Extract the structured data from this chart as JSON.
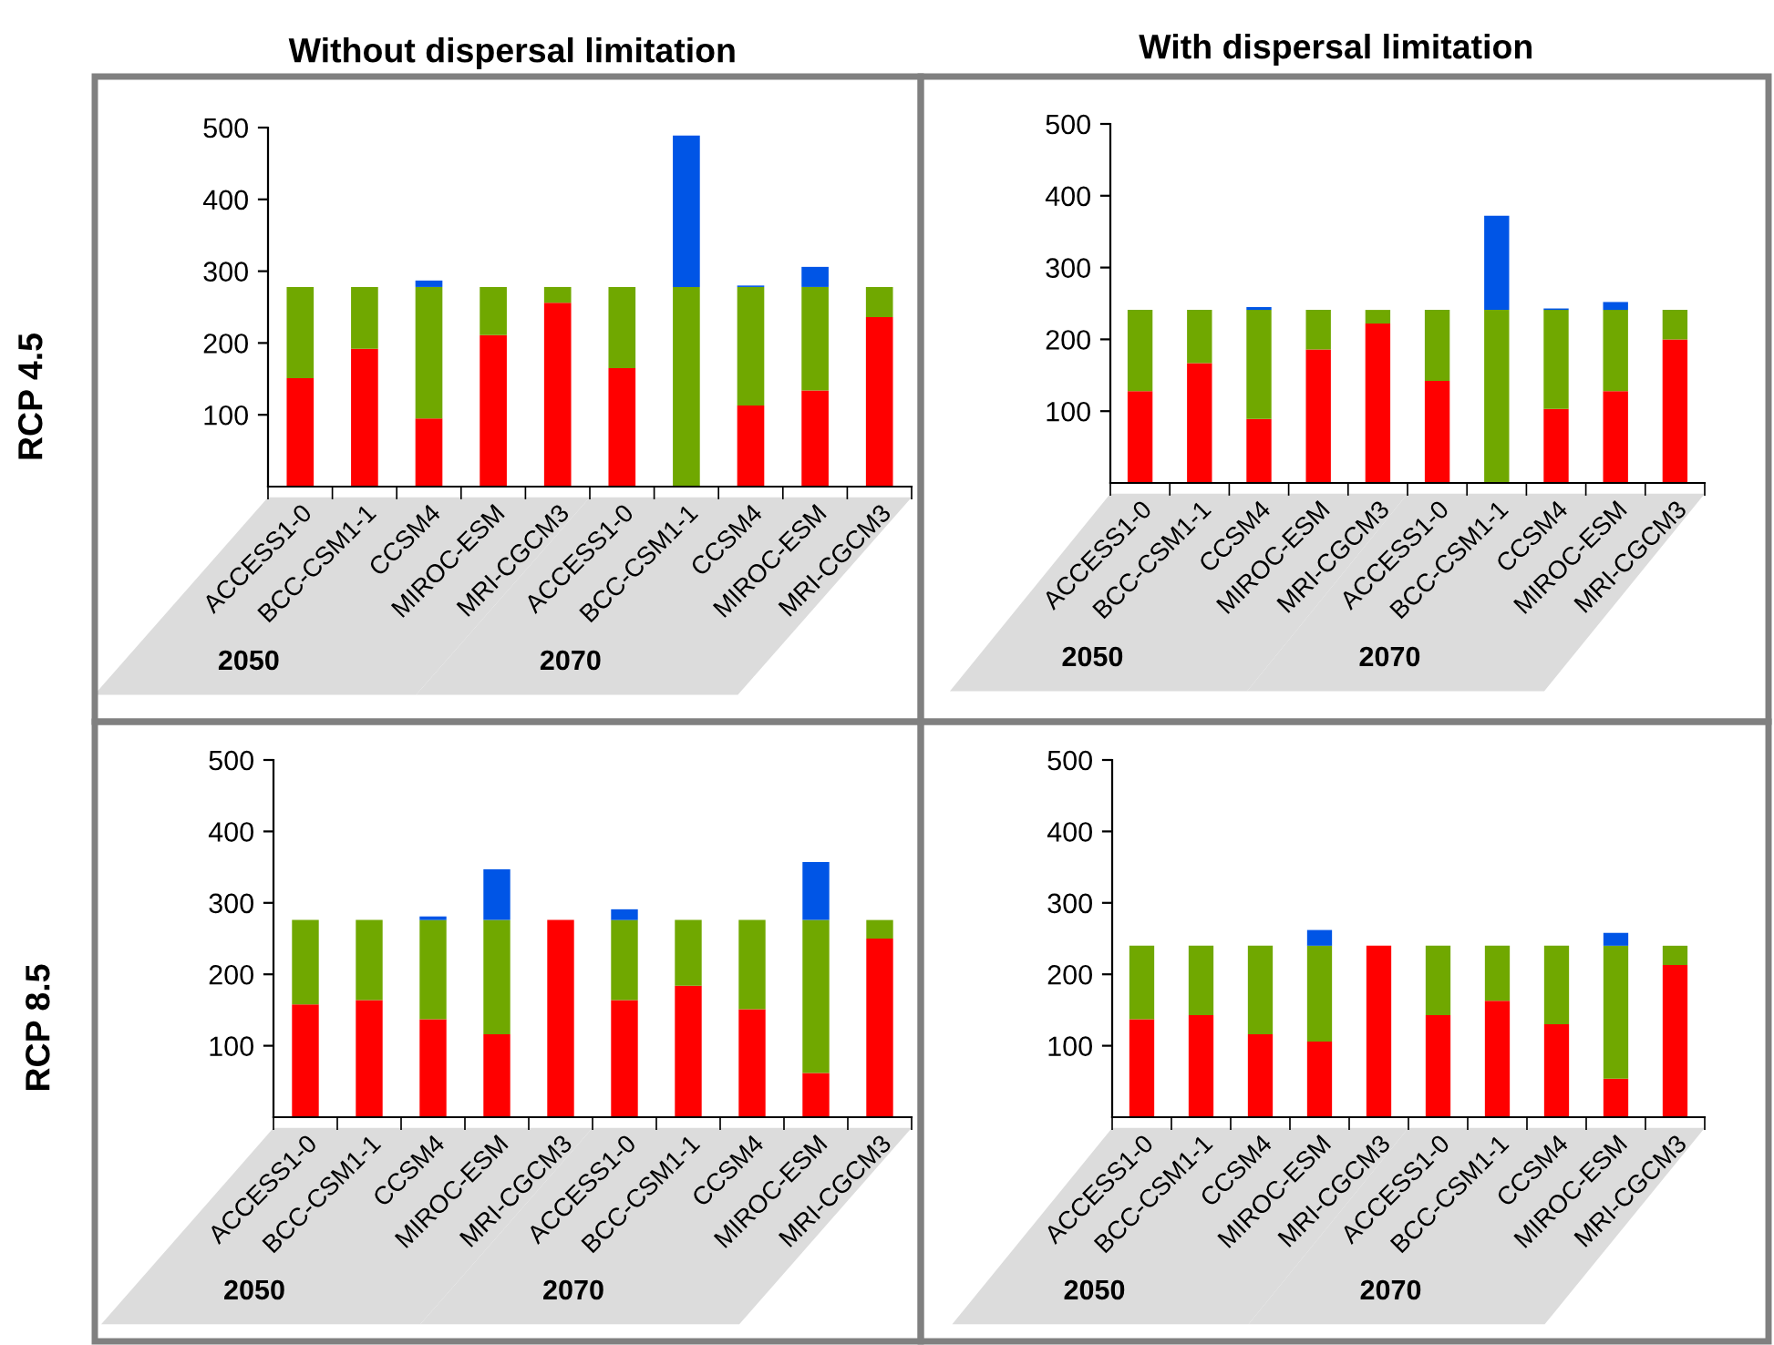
{
  "chart_data": [
    {
      "type": "bar",
      "stacked": true,
      "title": "Without dispersal limitation",
      "ylabel": "RCP 4.5",
      "categories": [
        "ACCESS1-0",
        "BCC-CSM1-1",
        "CCSM4",
        "MIROC-ESM",
        "MRI-CGCM3",
        "ACCESS1-0",
        "BCC-CSM1-1",
        "CCSM4",
        "MIROC-ESM",
        "MRI-CGCM3"
      ],
      "series": [
        {
          "color": "#ff0000",
          "values": [
            151,
            192,
            95,
            211,
            256,
            165,
            0,
            113,
            134,
            236
          ]
        },
        {
          "color": "#70a800",
          "values": [
            127,
            86,
            183,
            67,
            22,
            113,
            278,
            165,
            144,
            42
          ]
        },
        {
          "color": "#0055e6",
          "values": [
            0,
            0,
            9,
            0,
            0,
            0,
            211,
            2,
            28,
            0
          ]
        }
      ],
      "ylim": [
        0,
        500
      ],
      "yticks": [
        100,
        200,
        300,
        400,
        500
      ],
      "grid": false,
      "annotations": [
        "2050",
        "2070"
      ]
    },
    {
      "type": "bar",
      "stacked": true,
      "title": "With dispersal limitation",
      "categories": [
        "ACCESS1-0",
        "BCC-CSM1-1",
        "CCSM4",
        "MIROC-ESM",
        "MRI-CGCM3",
        "ACCESS1-0",
        "BCC-CSM1-1",
        "CCSM4",
        "MIROC-ESM",
        "MRI-CGCM3"
      ],
      "series": [
        {
          "color": "#ff0000",
          "values": [
            128,
            167,
            89,
            186,
            222,
            142,
            0,
            103,
            128,
            200
          ]
        },
        {
          "color": "#70a800",
          "values": [
            113,
            74,
            152,
            55,
            19,
            99,
            241,
            138,
            113,
            41
          ]
        },
        {
          "color": "#0055e6",
          "values": [
            0,
            0,
            4,
            0,
            0,
            0,
            131,
            2,
            11,
            0
          ]
        }
      ],
      "ylim": [
        0,
        500
      ],
      "yticks": [
        100,
        200,
        300,
        400,
        500
      ],
      "grid": false,
      "annotations": [
        "2050",
        "2070"
      ]
    },
    {
      "type": "bar",
      "stacked": true,
      "ylabel": "RCP 8.5",
      "categories": [
        "ACCESS1-0",
        "BCC-CSM1-1",
        "CCSM4",
        "MIROC-ESM",
        "MRI-CGCM3",
        "ACCESS1-0",
        "BCC-CSM1-1",
        "CCSM4",
        "MIROC-ESM",
        "MRI-CGCM3"
      ],
      "series": [
        {
          "color": "#ff0000",
          "values": [
            158,
            164,
            137,
            116,
            276,
            164,
            184,
            151,
            62,
            250
          ]
        },
        {
          "color": "#70a800",
          "values": [
            118,
            112,
            139,
            160,
            0,
            112,
            92,
            125,
            214,
            26
          ]
        },
        {
          "color": "#0055e6",
          "values": [
            0,
            0,
            5,
            71,
            0,
            15,
            0,
            0,
            81,
            0
          ]
        }
      ],
      "ylim": [
        0,
        500
      ],
      "yticks": [
        100,
        200,
        300,
        400,
        500
      ],
      "grid": false,
      "annotations": [
        "2050",
        "2070"
      ]
    },
    {
      "type": "bar",
      "stacked": true,
      "categories": [
        "ACCESS1-0",
        "BCC-CSM1-1",
        "CCSM4",
        "MIROC-ESM",
        "MRI-CGCM3",
        "ACCESS1-0",
        "BCC-CSM1-1",
        "CCSM4",
        "MIROC-ESM",
        "MRI-CGCM3"
      ],
      "series": [
        {
          "color": "#ff0000",
          "values": [
            137,
            143,
            116,
            106,
            240,
            143,
            163,
            130,
            54,
            213
          ]
        },
        {
          "color": "#70a800",
          "values": [
            103,
            97,
            124,
            134,
            0,
            97,
            77,
            110,
            186,
            27
          ]
        },
        {
          "color": "#0055e6",
          "values": [
            0,
            0,
            0,
            22,
            0,
            0,
            0,
            0,
            18,
            0
          ]
        }
      ],
      "ylim": [
        0,
        500
      ],
      "yticks": [
        100,
        200,
        300,
        400,
        500
      ],
      "grid": false,
      "annotations": [
        "2050",
        "2070"
      ]
    }
  ]
}
